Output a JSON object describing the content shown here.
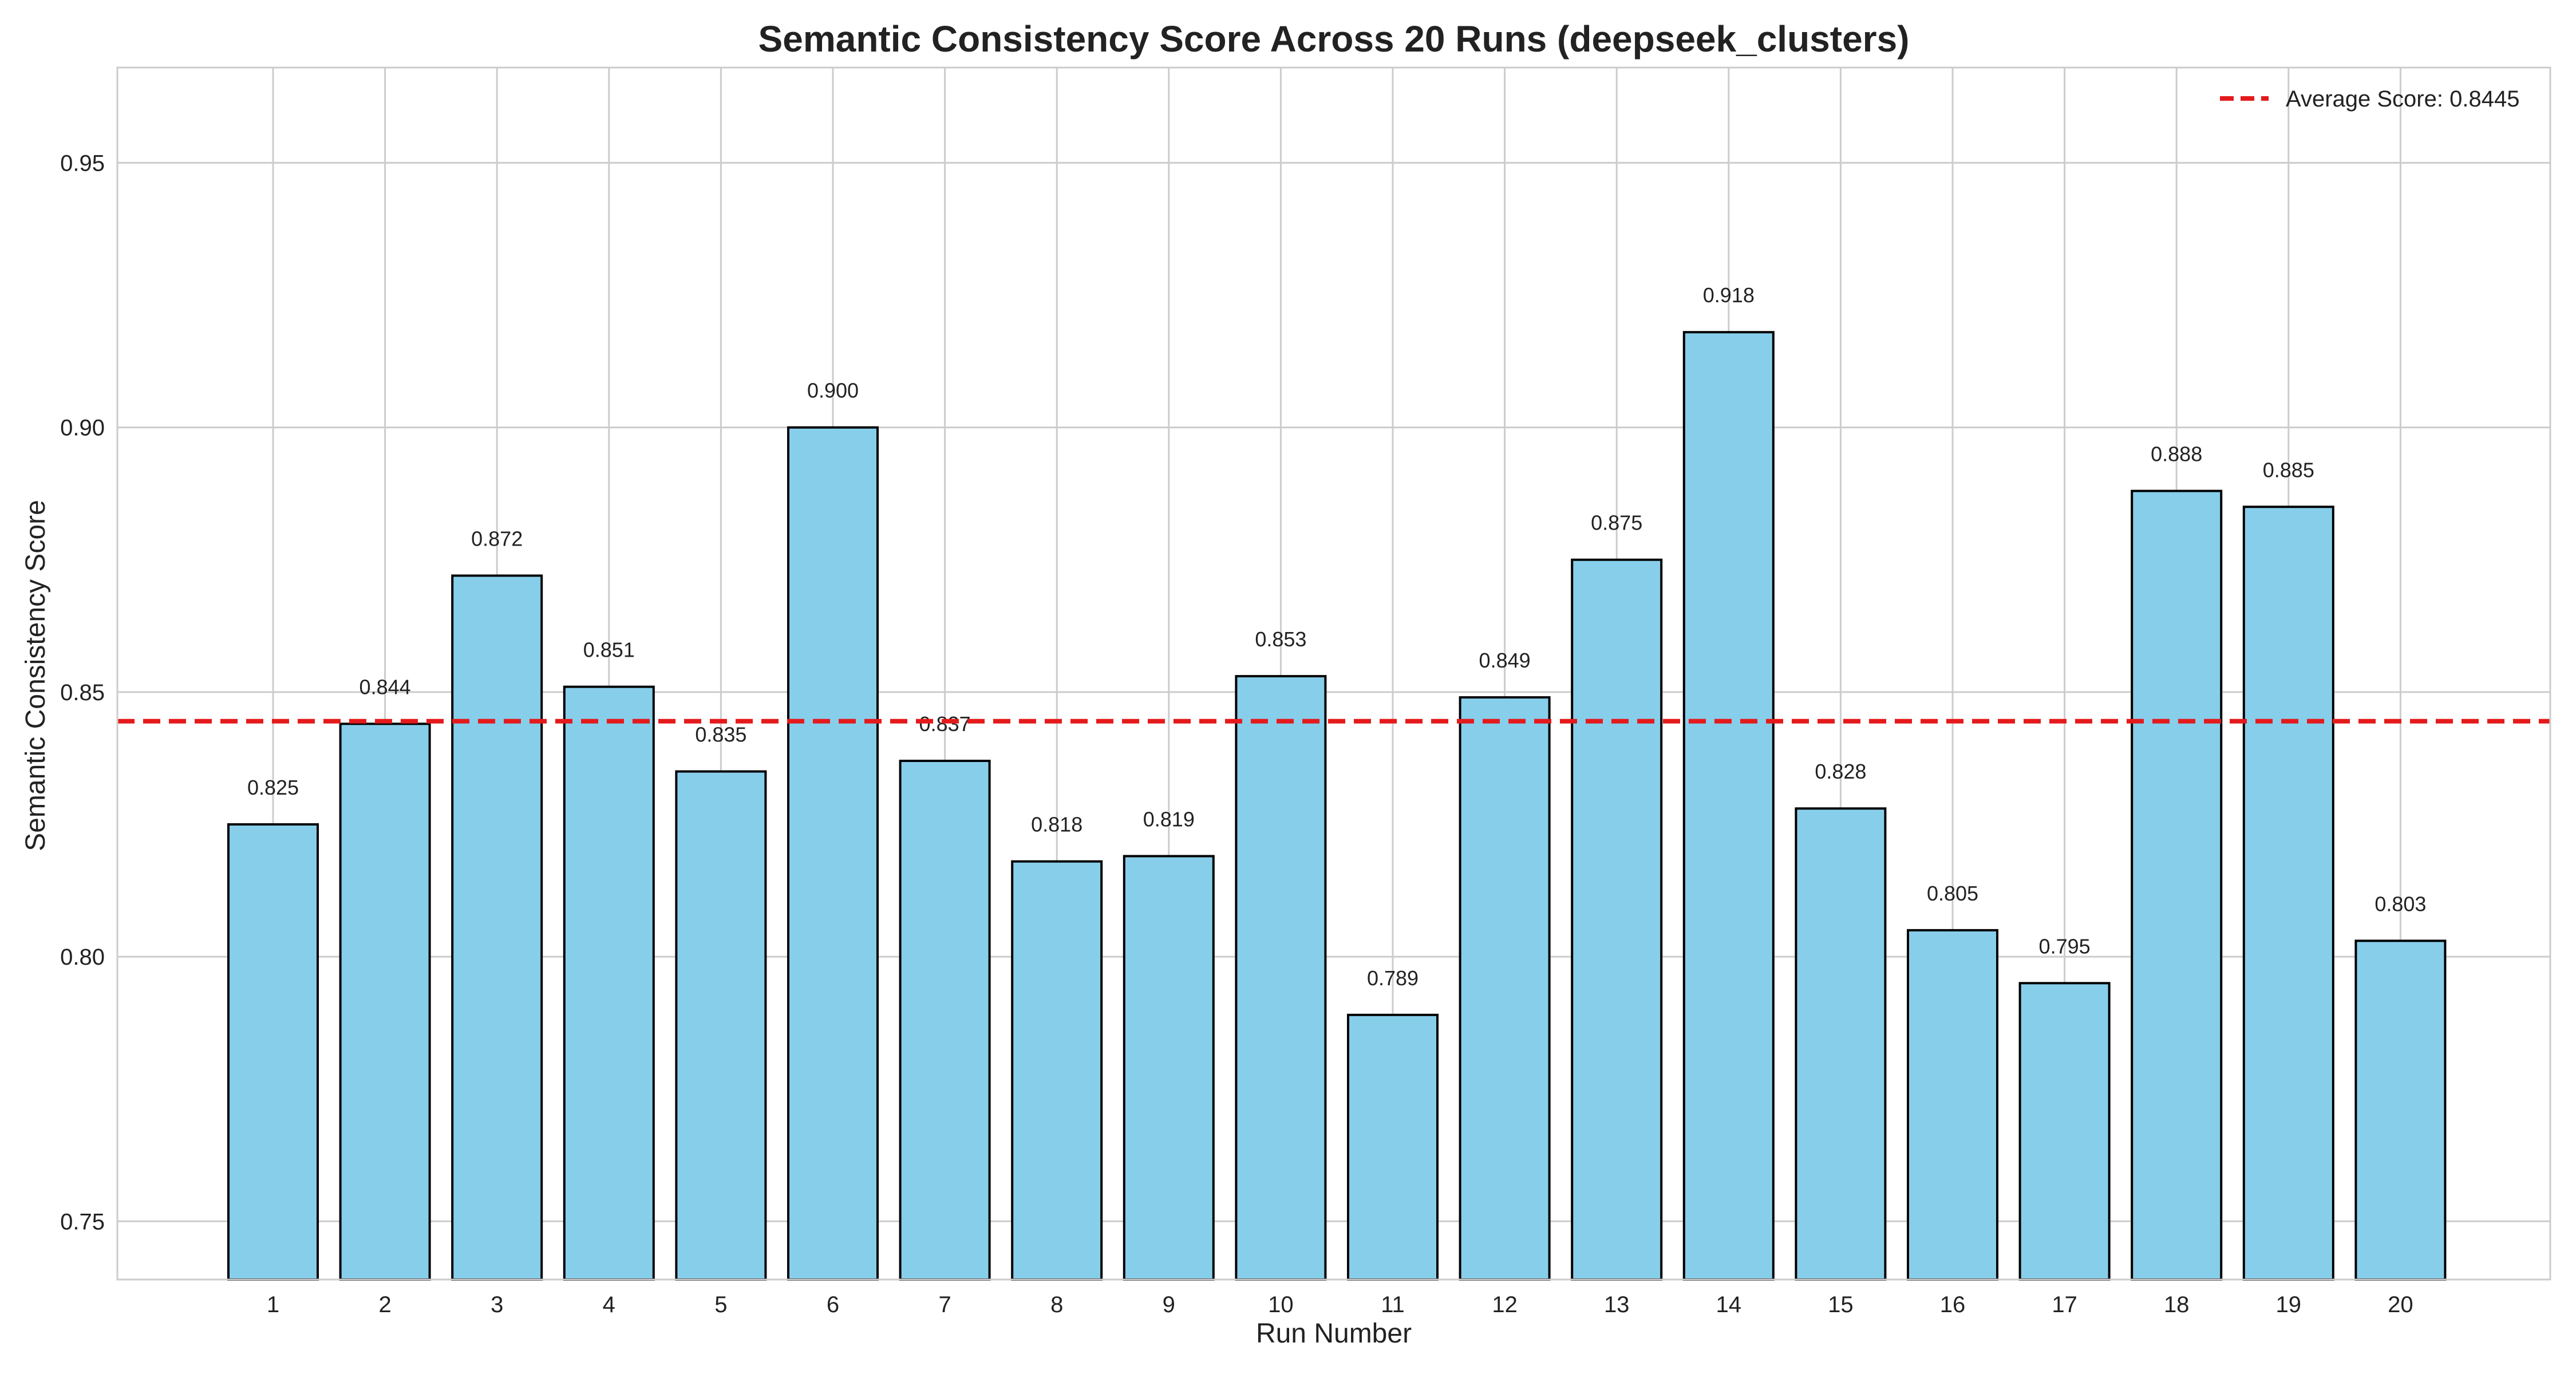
{
  "chart_data": {
    "type": "bar",
    "title": "Semantic Consistency Score Across 20 Runs (deepseek_clusters)",
    "xlabel": "Run Number",
    "ylabel": "Semantic Consistency Score",
    "categories": [
      "1",
      "2",
      "3",
      "4",
      "5",
      "6",
      "7",
      "8",
      "9",
      "10",
      "11",
      "12",
      "13",
      "14",
      "15",
      "16",
      "17",
      "18",
      "19",
      "20"
    ],
    "values": [
      0.825,
      0.844,
      0.872,
      0.851,
      0.835,
      0.9,
      0.837,
      0.818,
      0.819,
      0.853,
      0.789,
      0.849,
      0.875,
      0.918,
      0.828,
      0.805,
      0.795,
      0.888,
      0.885,
      0.803
    ],
    "data_labels": [
      "0.825",
      "0.844",
      "0.872",
      "0.851",
      "0.835",
      "0.900",
      "0.837",
      "0.818",
      "0.819",
      "0.853",
      "0.789",
      "0.849",
      "0.875",
      "0.918",
      "0.828",
      "0.805",
      "0.795",
      "0.888",
      "0.885",
      "0.803"
    ],
    "ylim": [
      0.739,
      0.968
    ],
    "yticks": [
      0.75,
      0.8,
      0.85,
      0.9,
      0.95
    ],
    "ytick_labels": [
      "0.75",
      "0.80",
      "0.85",
      "0.90",
      "0.95"
    ],
    "grid": true,
    "average": {
      "value": 0.8445,
      "label": "Average Score: 0.8445"
    },
    "legend_position": "top-right",
    "colors": {
      "bar_fill": "#87CEEB",
      "bar_edge": "#000000",
      "average_line": "#E41A1C",
      "grid": "#CCCCCC",
      "axes": "#CCCCCC"
    }
  }
}
